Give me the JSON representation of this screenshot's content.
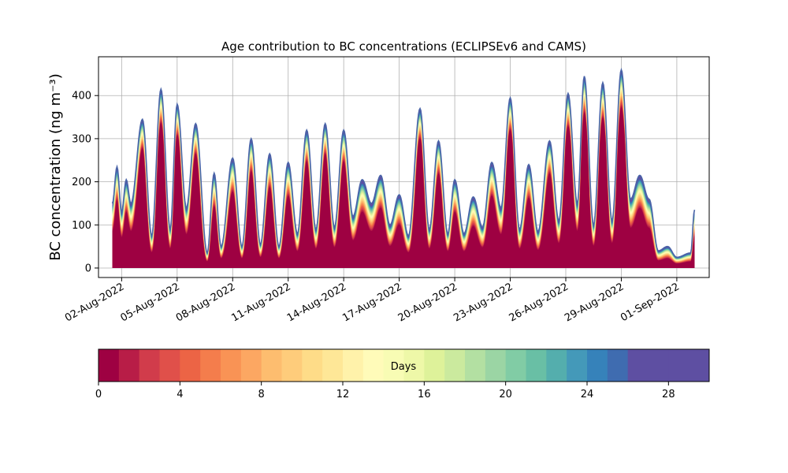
{
  "chart_data": {
    "type": "area",
    "title": "Age contribution to BC concentrations (ECLIPSEv6 and CAMS)",
    "ylabel": "BC concentration (ng m⁻³)",
    "xlabel": "",
    "ylim": [
      -22,
      490
    ],
    "yticks": [
      0,
      100,
      200,
      300,
      400
    ],
    "xlim": [
      "2022-07-31T18:00",
      "2022-09-02T18:00"
    ],
    "xticks": [
      "2022-08-02",
      "2022-08-05",
      "2022-08-08",
      "2022-08-11",
      "2022-08-14",
      "2022-08-17",
      "2022-08-20",
      "2022-08-23",
      "2022-08-26",
      "2022-08-29",
      "2022-09-01"
    ],
    "xtick_labels": [
      "02-Aug-2022",
      "05-Aug-2022",
      "08-Aug-2022",
      "11-Aug-2022",
      "14-Aug-2022",
      "17-Aug-2022",
      "20-Aug-2022",
      "23-Aug-2022",
      "26-Aug-2022",
      "29-Aug-2022",
      "01-Sep-2022"
    ],
    "grid": true,
    "series_description": "stacked contributions by aerosol age in days (0-30 days)",
    "start": "2022-08-01T12:00",
    "end": "2022-09-01T23:00",
    "total_peaks": [
      [
        "2022-08-01T12:00",
        150
      ],
      [
        "2022-08-01T18:00",
        235
      ],
      [
        "2022-08-02T00:00",
        130
      ],
      [
        "2022-08-02T06:00",
        205
      ],
      [
        "2022-08-02T12:00",
        150
      ],
      [
        "2022-08-03T03:00",
        345
      ],
      [
        "2022-08-03T15:00",
        75
      ],
      [
        "2022-08-04T03:00",
        415
      ],
      [
        "2022-08-04T15:00",
        90
      ],
      [
        "2022-08-05T00:00",
        380
      ],
      [
        "2022-08-05T12:00",
        140
      ],
      [
        "2022-08-06T00:00",
        335
      ],
      [
        "2022-08-06T15:00",
        35
      ],
      [
        "2022-08-07T00:00",
        220
      ],
      [
        "2022-08-07T09:00",
        50
      ],
      [
        "2022-08-08T00:00",
        255
      ],
      [
        "2022-08-08T12:00",
        50
      ],
      [
        "2022-08-09T00:00",
        300
      ],
      [
        "2022-08-09T12:00",
        55
      ],
      [
        "2022-08-10T00:00",
        265
      ],
      [
        "2022-08-10T12:00",
        50
      ],
      [
        "2022-08-11T00:00",
        245
      ],
      [
        "2022-08-11T12:00",
        80
      ],
      [
        "2022-08-12T00:00",
        320
      ],
      [
        "2022-08-12T12:00",
        90
      ],
      [
        "2022-08-13T00:00",
        335
      ],
      [
        "2022-08-13T12:00",
        95
      ],
      [
        "2022-08-14T00:00",
        320
      ],
      [
        "2022-08-14T12:00",
        120
      ],
      [
        "2022-08-15T00:00",
        205
      ],
      [
        "2022-08-15T12:00",
        150
      ],
      [
        "2022-08-16T00:00",
        215
      ],
      [
        "2022-08-16T12:00",
        100
      ],
      [
        "2022-08-17T00:00",
        170
      ],
      [
        "2022-08-17T12:00",
        75
      ],
      [
        "2022-08-18T03:00",
        370
      ],
      [
        "2022-08-18T15:00",
        90
      ],
      [
        "2022-08-19T03:00",
        295
      ],
      [
        "2022-08-19T15:00",
        80
      ],
      [
        "2022-08-20T00:00",
        205
      ],
      [
        "2022-08-20T12:00",
        80
      ],
      [
        "2022-08-21T00:00",
        165
      ],
      [
        "2022-08-21T12:00",
        95
      ],
      [
        "2022-08-22T00:00",
        245
      ],
      [
        "2022-08-22T12:00",
        140
      ],
      [
        "2022-08-23T00:00",
        395
      ],
      [
        "2022-08-23T12:00",
        90
      ],
      [
        "2022-08-24T00:00",
        240
      ],
      [
        "2022-08-24T12:00",
        85
      ],
      [
        "2022-08-25T03:00",
        295
      ],
      [
        "2022-08-25T15:00",
        110
      ],
      [
        "2022-08-26T03:00",
        405
      ],
      [
        "2022-08-26T15:00",
        150
      ],
      [
        "2022-08-27T00:00",
        445
      ],
      [
        "2022-08-27T12:00",
        100
      ],
      [
        "2022-08-28T00:00",
        430
      ],
      [
        "2022-08-28T12:00",
        110
      ],
      [
        "2022-08-29T00:00",
        460
      ],
      [
        "2022-08-29T12:00",
        160
      ],
      [
        "2022-08-30T00:00",
        215
      ],
      [
        "2022-08-30T12:00",
        160
      ],
      [
        "2022-08-31T00:00",
        40
      ],
      [
        "2022-08-31T12:00",
        50
      ],
      [
        "2022-09-01T00:00",
        25
      ],
      [
        "2022-09-01T18:00",
        35
      ],
      [
        "2022-09-01T23:00",
        135
      ]
    ],
    "colorbar": {
      "label": "Days",
      "range": [
        0,
        30
      ],
      "ticks": [
        0,
        4,
        8,
        12,
        16,
        20,
        24,
        28
      ],
      "bin_width": 1,
      "colormap": "Spectral",
      "colors": [
        "#9e0142",
        "#b81d47",
        "#d13c4b",
        "#e0504a",
        "#ec6445",
        "#f47d4c",
        "#f99355",
        "#fca762",
        "#fdbd6f",
        "#fecc7b",
        "#fedc88",
        "#fee797",
        "#fff2aa",
        "#fffbb9",
        "#f8fcb4",
        "#eef8a8",
        "#def29a",
        "#cbea9e",
        "#b3e0a2",
        "#9bd5a4",
        "#81cca5",
        "#69bfa5",
        "#54aead",
        "#4499b9",
        "#3682ba",
        "#3f6cb0",
        "#5e4fa2",
        "#5e4fa2",
        "#5e4fa2",
        "#5e4fa2"
      ]
    }
  }
}
